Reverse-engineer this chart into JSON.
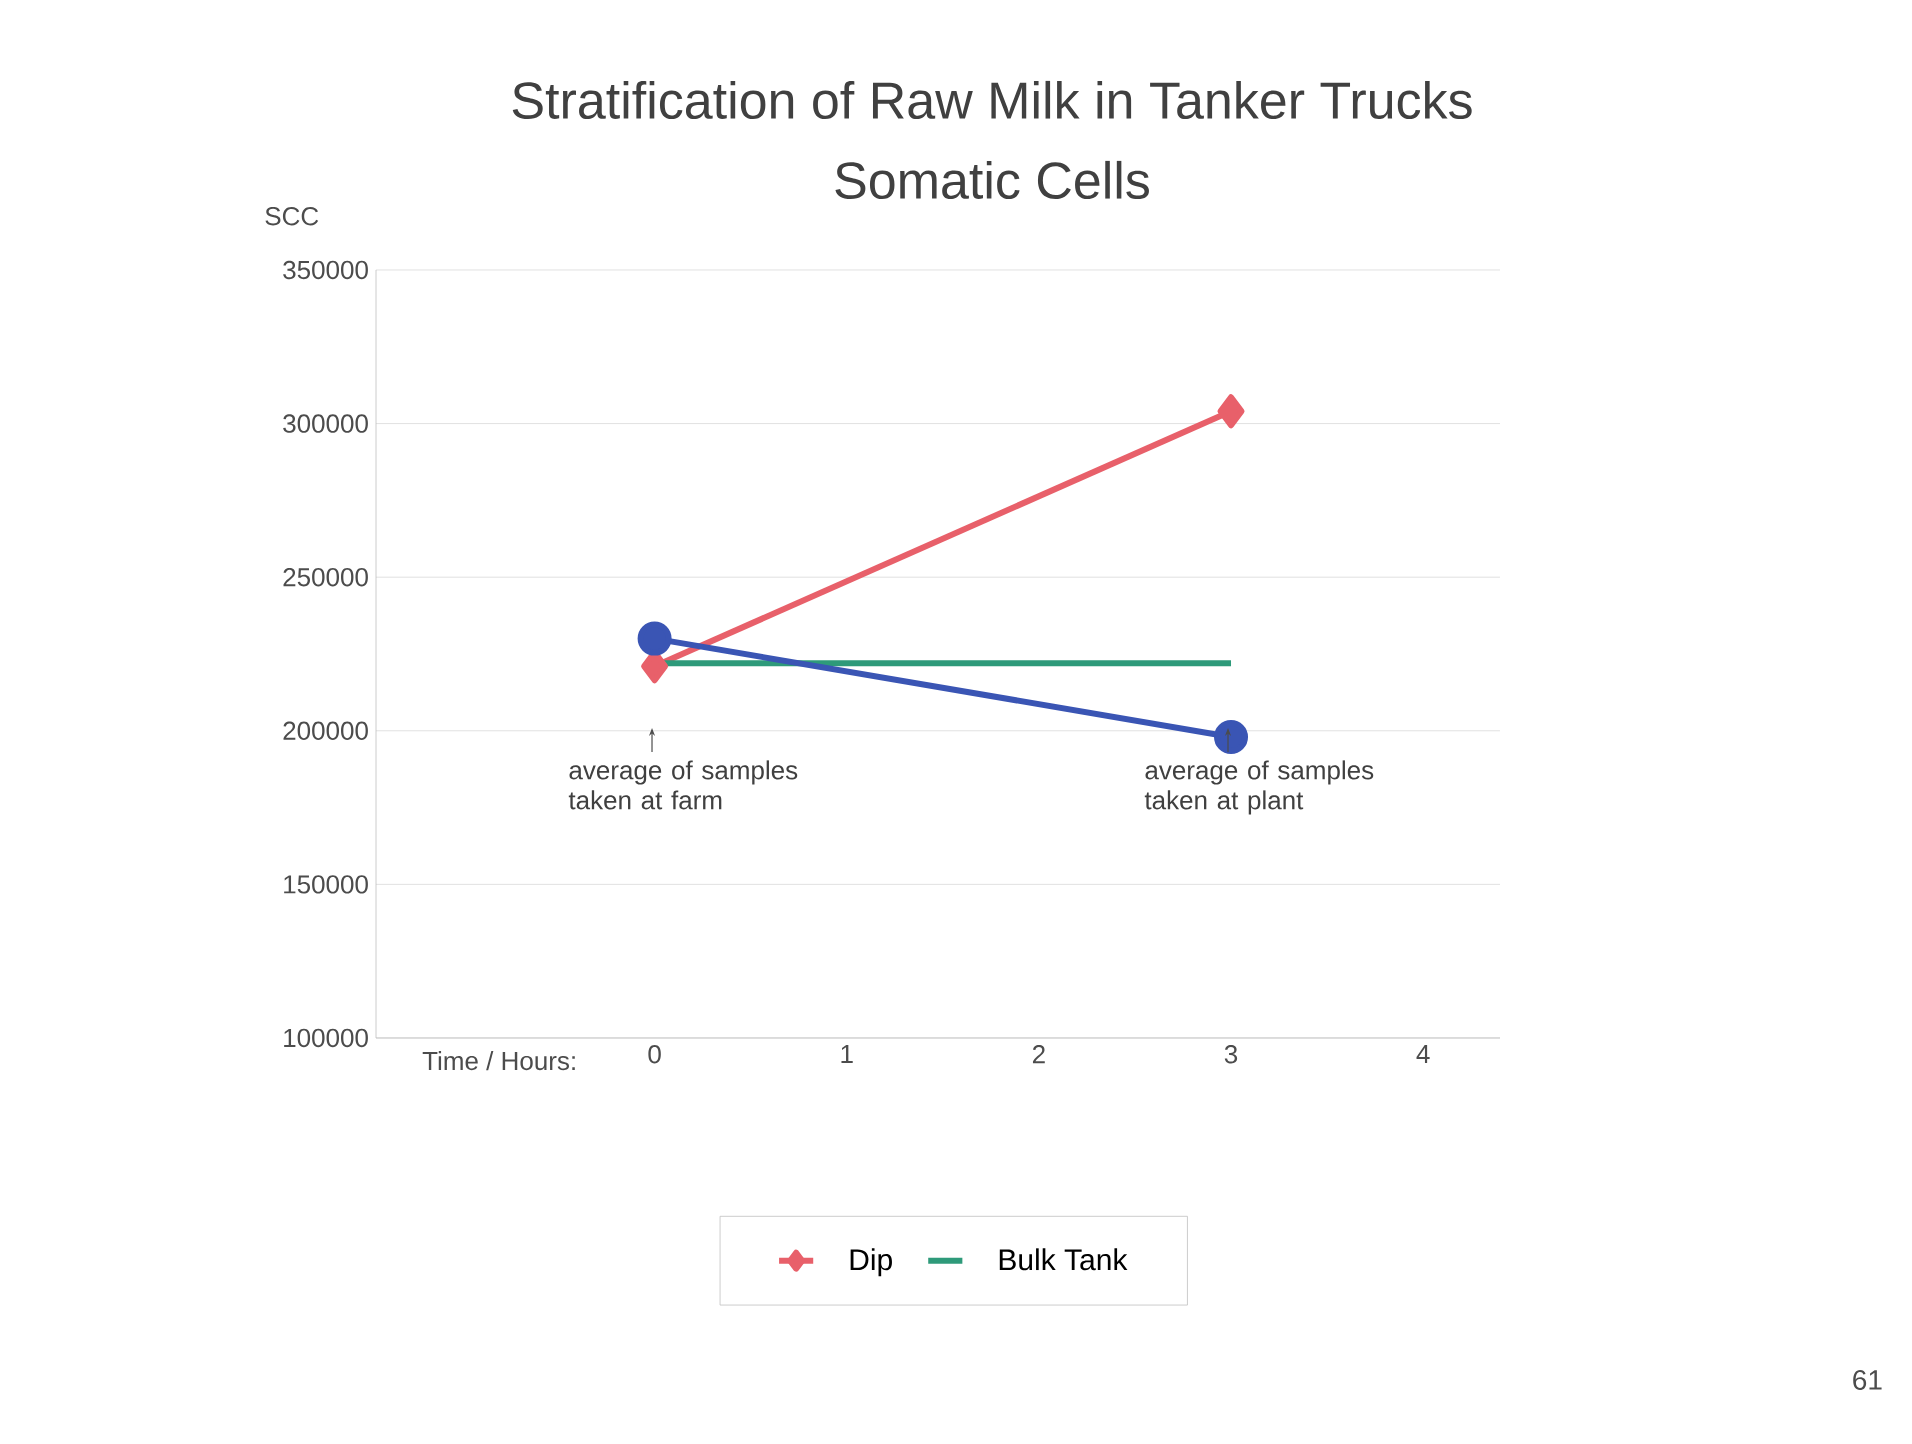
{
  "chart_data": {
    "type": "line",
    "title": "Stratification of Raw Milk in Tanker Trucks",
    "subtitle": "Somatic Cells",
    "xlabel": "Time / Hours:",
    "ylabel": "SCC",
    "x": [
      0,
      3
    ],
    "series": [
      {
        "name": "Dip",
        "color": "#e8606a",
        "values": [
          221000,
          304000
        ],
        "marker": "diamond"
      },
      {
        "name": "Bulk Tank",
        "color": "#2e9a7a",
        "values": [
          222000,
          222000
        ],
        "marker": "none"
      },
      {
        "color": "#3a55b4",
        "values": [
          230000,
          198000
        ],
        "marker": "circle"
      }
    ],
    "xlim": [
      -1.45,
      4.4
    ],
    "xticks": [
      0,
      1,
      2,
      3,
      4
    ],
    "ylim": [
      100000,
      350000
    ],
    "yticks": [
      100000,
      150000,
      200000,
      250000,
      300000,
      350000
    ],
    "grid": "y",
    "legend": "bottom",
    "line_style": "solid",
    "annotations": [
      "average of samples taken at farm",
      "average of samples taken at plant",
      "61"
    ]
  }
}
